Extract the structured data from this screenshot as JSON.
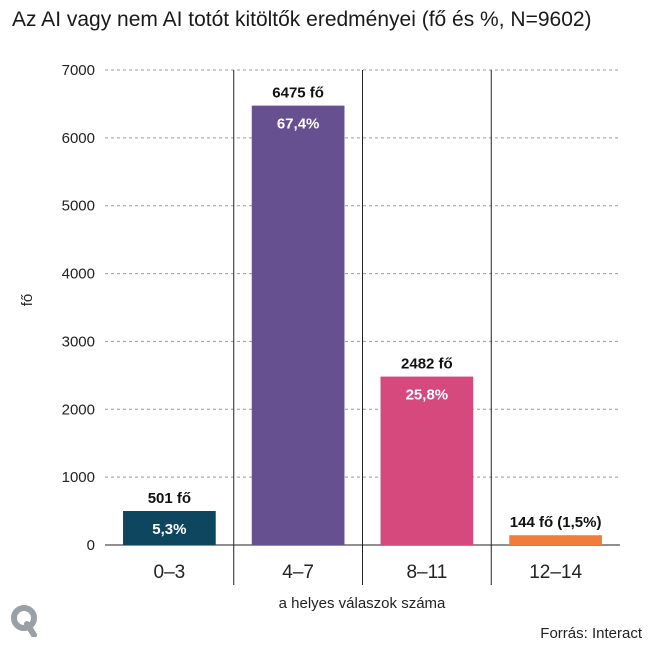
{
  "title": "Az AI vagy nem AI totót kitöltők eredményei (fő és %, N=9602)",
  "source": "Forrás: Interact",
  "logo_text": "Q",
  "chart_data": {
    "type": "bar",
    "title": "Az AI vagy nem AI totót kitöltők eredményei (fő és %, N=9602)",
    "xlabel": "a helyes válaszok száma",
    "ylabel": "fő",
    "ylim": [
      0,
      7000
    ],
    "yticks": [
      "0",
      "1000",
      "2000",
      "3000",
      "4000",
      "5000",
      "6000",
      "7000"
    ],
    "categories": [
      "0–3",
      "4–7",
      "8–11",
      "12–14"
    ],
    "values": [
      501,
      6475,
      2482,
      144
    ],
    "percent_labels": [
      "5,3%",
      "67,4%",
      "25,8%",
      ""
    ],
    "count_labels": [
      "501 fő",
      "6475 fő",
      "2482 fő",
      "144 fő (1,5%)"
    ],
    "colors": [
      "#0e4660",
      "#66508f",
      "#d5497d",
      "#f07d3c"
    ],
    "grid": true
  }
}
